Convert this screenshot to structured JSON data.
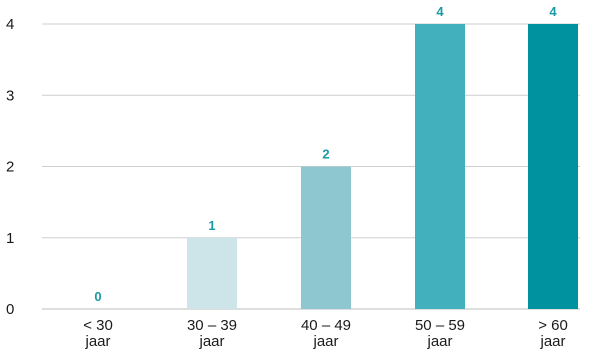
{
  "chart_data": {
    "type": "bar",
    "categories": [
      [
        "< 30",
        "jaar"
      ],
      [
        "30 – 39",
        "jaar"
      ],
      [
        "40 – 49",
        "jaar"
      ],
      [
        "50 – 59",
        "jaar"
      ],
      [
        "> 60",
        "jaar"
      ]
    ],
    "values": [
      0,
      1,
      2,
      4,
      4
    ],
    "ylim": [
      0,
      4
    ],
    "yticks": [
      "0",
      "1",
      "2",
      "3",
      "4"
    ],
    "grid": true,
    "bar_colors": [
      "#cde5e8",
      "#cde5e8",
      "#8fc7d0",
      "#42b0bd",
      "#00929f"
    ],
    "label_color": "#1a9aa6",
    "title": "",
    "xlabel": "",
    "ylabel": ""
  }
}
